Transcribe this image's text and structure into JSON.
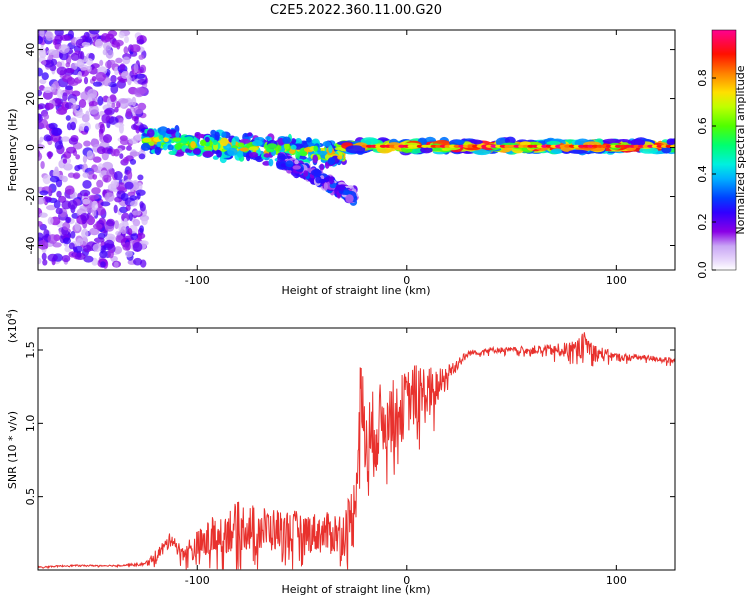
{
  "title": "C2E5.2022.360.11.00.G20",
  "chart_data": [
    {
      "type": "heatmap",
      "name": "spectrogram",
      "xlabel": "Height of straight line (km)",
      "ylabel": "Frequency (Hz)",
      "xlim": [
        -176,
        128
      ],
      "ylim": [
        -50,
        48
      ],
      "xticks": [
        -100,
        0,
        100
      ],
      "xtick_labels": [
        "-100",
        "0",
        "100"
      ],
      "yticks": [
        -40,
        -20,
        0,
        20,
        40
      ],
      "ytick_labels": [
        "-40",
        "-20",
        "0",
        "20",
        "40"
      ],
      "colorbar": {
        "label": "Normalized spectral amplitude",
        "range": [
          0,
          1
        ],
        "ticks": [
          0.0,
          0.2,
          0.4,
          0.6,
          0.8
        ],
        "tick_labels": [
          "0.0",
          "0.2",
          "0.4",
          "0.6",
          "0.8"
        ],
        "colormap": [
          "#ffffff",
          "#c9a6f5",
          "#8a00e6",
          "#3000ff",
          "#0060ff",
          "#00d0ff",
          "#00ff80",
          "#7fff00",
          "#ffff00",
          "#ff8000",
          "#ff0000",
          "#ff0080"
        ]
      },
      "regions": [
        {
          "x": [
            -176,
            -125
          ],
          "freq_center": 0,
          "freq_spread": 48,
          "level": 0.15,
          "note": "scattered low-amplitude noise"
        },
        {
          "x": [
            -125,
            -30
          ],
          "freq_center_start": 3,
          "freq_center_end": -3,
          "freq_spread": 6,
          "level": 0.45
        },
        {
          "x": [
            -60,
            -25
          ],
          "freq_center_start": -5,
          "freq_center_end": -20,
          "freq_spread": 3,
          "level": 0.2
        },
        {
          "x": [
            -30,
            128
          ],
          "freq_center": 0.5,
          "freq_spread": 2.5,
          "level": 0.75
        }
      ]
    },
    {
      "type": "line",
      "name": "snr",
      "xlabel": "Height of straight line (km)",
      "ylabel": "SNR (10 * v/v)",
      "y_scale_label": "(x10^4)",
      "xlim": [
        -176,
        128
      ],
      "ylim": [
        0,
        1.65
      ],
      "xticks": [
        -100,
        0,
        100
      ],
      "xtick_labels": [
        "-100",
        "0",
        "100"
      ],
      "yticks": [
        0.5,
        1.0,
        1.5
      ],
      "ytick_labels": [
        "0.5",
        "1.0",
        "1.5"
      ],
      "color": "#e8312d",
      "series": [
        {
          "x": [
            -176,
            -160,
            -140,
            -125,
            -118,
            -112,
            -108,
            -100,
            -90,
            -80,
            -70,
            -60,
            -50,
            -40,
            -30,
            -25,
            -22,
            -20,
            -18,
            -15,
            -10,
            -5,
            0,
            5,
            10,
            15,
            20,
            25,
            30,
            40,
            50,
            60,
            70,
            80,
            85,
            90,
            100,
            110,
            120,
            128
          ],
          "y": [
            0.02,
            0.03,
            0.03,
            0.04,
            0.12,
            0.22,
            0.12,
            0.15,
            0.25,
            0.3,
            0.28,
            0.27,
            0.26,
            0.25,
            0.25,
            0.4,
            1.2,
            0.9,
            0.85,
            0.95,
            1.05,
            1.05,
            1.15,
            1.2,
            1.2,
            1.25,
            1.35,
            1.42,
            1.48,
            1.5,
            1.5,
            1.5,
            1.5,
            1.5,
            1.55,
            1.48,
            1.45,
            1.45,
            1.44,
            1.42
          ],
          "noise": [
            0.005,
            0.005,
            0.005,
            0.01,
            0.05,
            0.05,
            0.05,
            0.12,
            0.15,
            0.17,
            0.16,
            0.15,
            0.14,
            0.14,
            0.16,
            0.25,
            0.3,
            0.3,
            0.35,
            0.3,
            0.25,
            0.25,
            0.22,
            0.22,
            0.2,
            0.12,
            0.06,
            0.04,
            0.02,
            0.02,
            0.02,
            0.03,
            0.04,
            0.06,
            0.08,
            0.06,
            0.03,
            0.02,
            0.02,
            0.02
          ]
        }
      ]
    }
  ]
}
